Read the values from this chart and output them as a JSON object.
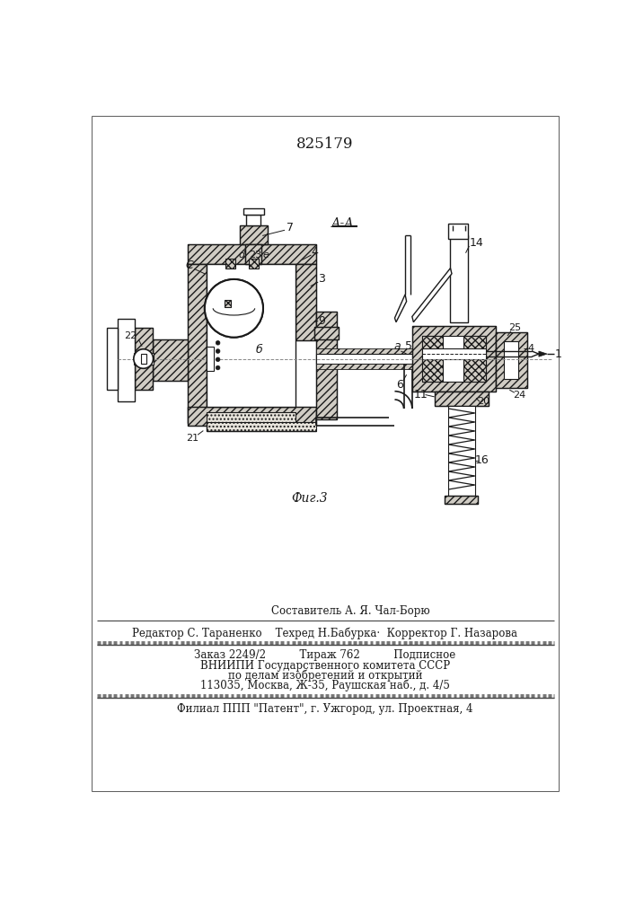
{
  "patent_number": "825179",
  "section_label": "А-А",
  "fig_label": "Фиг.3",
  "footer_lines": [
    "Составитель А. Я. Чал-Борю",
    "Редактор С. Тараненко    Техред Н.Бабурка·  Корректор Г. Назарова",
    "Заказ 2249/2          Тираж 762          Подписное",
    "ВНИИПИ Государственного комитета СССР",
    "по делам изобретений и открытий",
    "113035, Москва, Ж-35, Раушская наб., д. 4/5",
    "Филиал ППП \"Патент\", г. Ужгород, ул. Проектная, 4"
  ]
}
